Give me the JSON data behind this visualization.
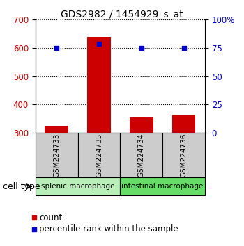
{
  "title": "GDS2982 / 1454929_s_at",
  "samples": [
    "GSM224733",
    "GSM224735",
    "GSM224734",
    "GSM224736"
  ],
  "counts": [
    325,
    640,
    355,
    365
  ],
  "percentiles": [
    75,
    79,
    75,
    75
  ],
  "ylim_left": [
    300,
    700
  ],
  "ylim_right": [
    0,
    100
  ],
  "yticks_left": [
    300,
    400,
    500,
    600,
    700
  ],
  "yticks_right": [
    0,
    25,
    50,
    75,
    100
  ],
  "ytick_labels_right": [
    "0",
    "25",
    "50",
    "75",
    "100%"
  ],
  "bar_color": "#cc0000",
  "dot_color": "#0000cc",
  "bar_width": 0.55,
  "groups": [
    {
      "label": "splenic macrophage",
      "samples": [
        0,
        1
      ],
      "color": "#b8eeb8"
    },
    {
      "label": "intestinal macrophage",
      "samples": [
        2,
        3
      ],
      "color": "#66dd66"
    }
  ],
  "cell_type_label": "cell type",
  "legend_items": [
    {
      "color": "#cc0000",
      "label": "count"
    },
    {
      "color": "#0000cc",
      "label": "percentile rank within the sample"
    }
  ],
  "grid_color": "black",
  "sample_box_color": "#cccccc",
  "background_color": "#ffffff"
}
